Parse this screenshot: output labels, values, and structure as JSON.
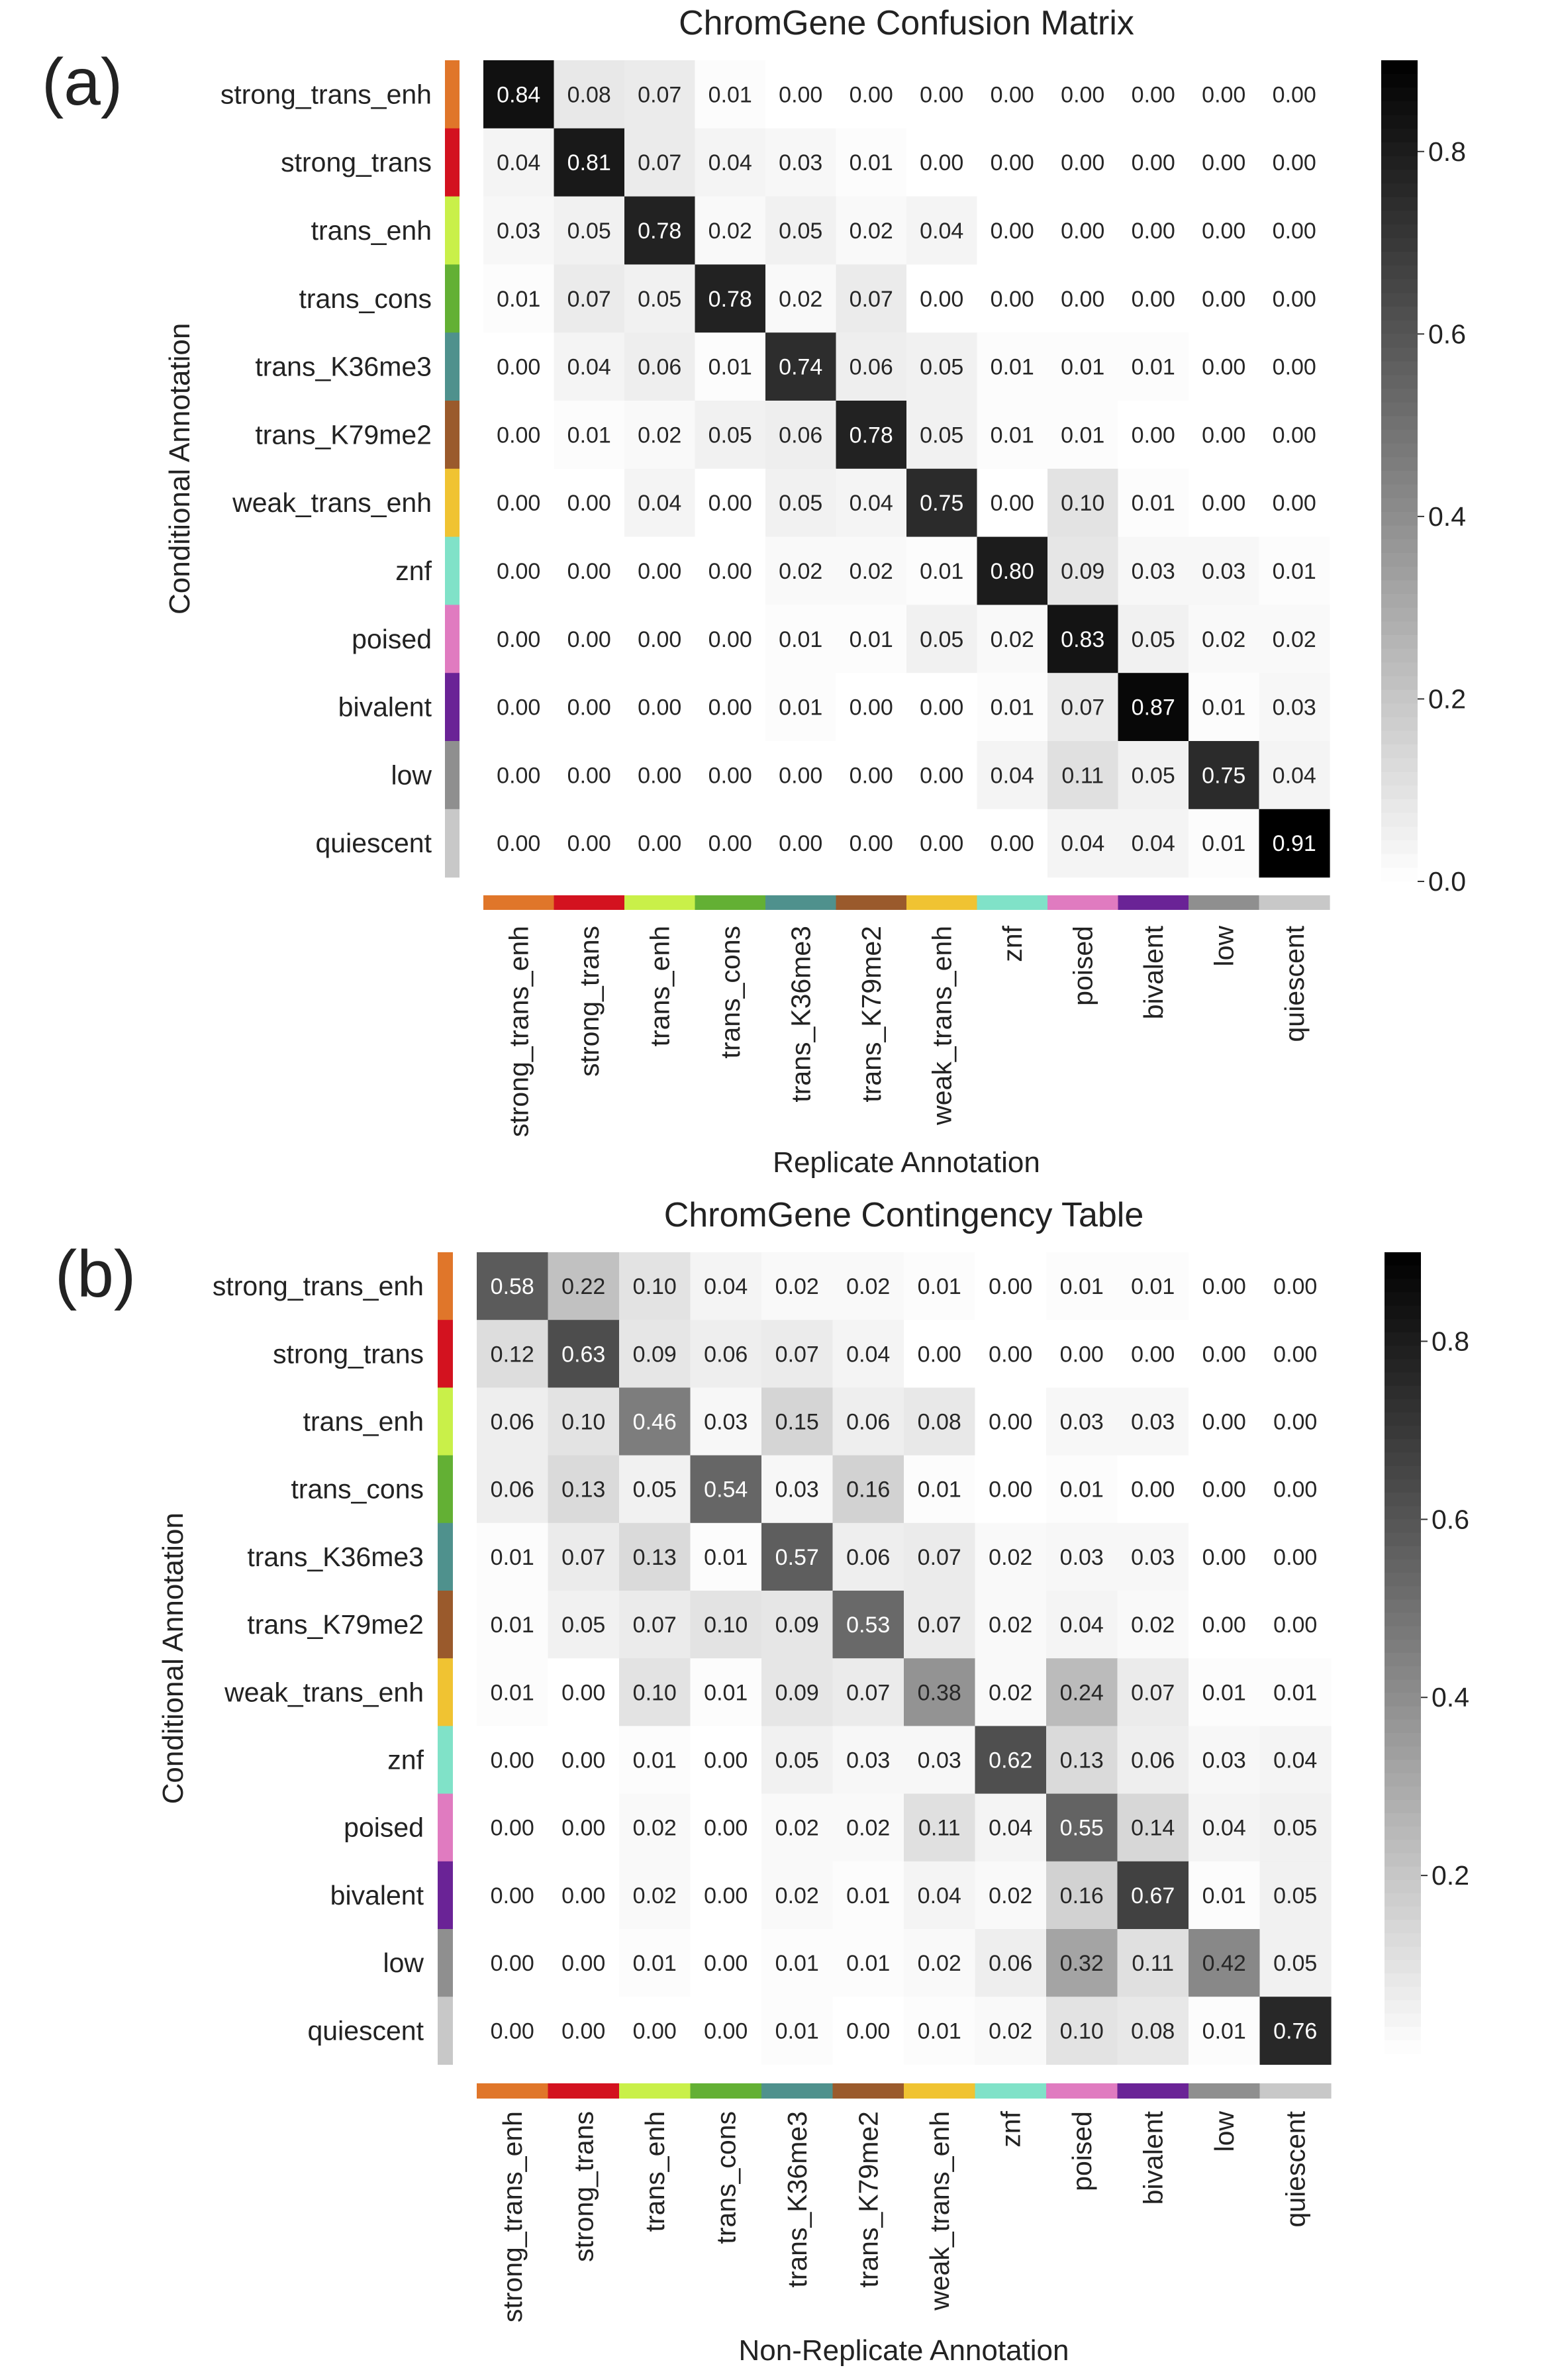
{
  "states": {
    "names": [
      "strong_trans_enh",
      "strong_trans",
      "trans_enh",
      "trans_cons",
      "trans_K36me3",
      "trans_K79me2",
      "weak_trans_enh",
      "znf",
      "poised",
      "bivalent",
      "low",
      "quiescent"
    ],
    "colors": [
      "#e0762a",
      "#d3121f",
      "#c9f049",
      "#63b034",
      "#4f918d",
      "#9a5a2c",
      "#f0c332",
      "#80e2c8",
      "#e07bc0",
      "#6a2396",
      "#8f8f8f",
      "#c8c8c8"
    ]
  },
  "chart_data": [
    {
      "type": "heatmap",
      "panel_label": "(a)",
      "title": "ChromGene Confusion Matrix",
      "xlabel": "Replicate Annotation",
      "ylabel": "Conditional Annotation",
      "colorbar_ticks": [
        "0.0",
        "0.2",
        "0.4",
        "0.6",
        "0.8"
      ],
      "colorbar_range": [
        0,
        0.9
      ],
      "values": [
        [
          0.84,
          0.08,
          0.07,
          0.01,
          0.0,
          0.0,
          0.0,
          0.0,
          0.0,
          0.0,
          0.0,
          0.0
        ],
        [
          0.04,
          0.81,
          0.07,
          0.04,
          0.03,
          0.01,
          0.0,
          0.0,
          0.0,
          0.0,
          0.0,
          0.0
        ],
        [
          0.03,
          0.05,
          0.78,
          0.02,
          0.05,
          0.02,
          0.04,
          0.0,
          0.0,
          0.0,
          0.0,
          0.0
        ],
        [
          0.01,
          0.07,
          0.05,
          0.78,
          0.02,
          0.07,
          0.0,
          0.0,
          0.0,
          0.0,
          0.0,
          0.0
        ],
        [
          0.0,
          0.04,
          0.06,
          0.01,
          0.74,
          0.06,
          0.05,
          0.01,
          0.01,
          0.01,
          0.0,
          0.0
        ],
        [
          0.0,
          0.01,
          0.02,
          0.05,
          0.06,
          0.78,
          0.05,
          0.01,
          0.01,
          0.0,
          0.0,
          0.0
        ],
        [
          0.0,
          0.0,
          0.04,
          0.0,
          0.05,
          0.04,
          0.75,
          0.0,
          0.1,
          0.01,
          0.0,
          0.0
        ],
        [
          0.0,
          0.0,
          0.0,
          0.0,
          0.02,
          0.02,
          0.01,
          0.8,
          0.09,
          0.03,
          0.03,
          0.01
        ],
        [
          0.0,
          0.0,
          0.0,
          0.0,
          0.01,
          0.01,
          0.05,
          0.02,
          0.83,
          0.05,
          0.02,
          0.02
        ],
        [
          0.0,
          0.0,
          0.0,
          0.0,
          0.01,
          0.0,
          0.0,
          0.01,
          0.07,
          0.87,
          0.01,
          0.03
        ],
        [
          0.0,
          0.0,
          0.0,
          0.0,
          0.0,
          0.0,
          0.0,
          0.04,
          0.11,
          0.05,
          0.75,
          0.04
        ],
        [
          0.0,
          0.0,
          0.0,
          0.0,
          0.0,
          0.0,
          0.0,
          0.0,
          0.04,
          0.04,
          0.01,
          0.91
        ]
      ]
    },
    {
      "type": "heatmap",
      "panel_label": "(b)",
      "title": "ChromGene Contingency Table",
      "xlabel": "Non-Replicate Annotation",
      "ylabel": "Conditional Annotation",
      "colorbar_ticks": [
        "0.2",
        "0.4",
        "0.6",
        "0.8"
      ],
      "colorbar_range": [
        0,
        0.9
      ],
      "values": [
        [
          0.58,
          0.22,
          0.1,
          0.04,
          0.02,
          0.02,
          0.01,
          0.0,
          0.01,
          0.01,
          0.0,
          0.0
        ],
        [
          0.12,
          0.63,
          0.09,
          0.06,
          0.07,
          0.04,
          0.0,
          0.0,
          0.0,
          0.0,
          0.0,
          0.0
        ],
        [
          0.06,
          0.1,
          0.46,
          0.03,
          0.15,
          0.06,
          0.08,
          0.0,
          0.03,
          0.03,
          0.0,
          0.0
        ],
        [
          0.06,
          0.13,
          0.05,
          0.54,
          0.03,
          0.16,
          0.01,
          0.0,
          0.01,
          0.0,
          0.0,
          0.0
        ],
        [
          0.01,
          0.07,
          0.13,
          0.01,
          0.57,
          0.06,
          0.07,
          0.02,
          0.03,
          0.03,
          0.0,
          0.0
        ],
        [
          0.01,
          0.05,
          0.07,
          0.1,
          0.09,
          0.53,
          0.07,
          0.02,
          0.04,
          0.02,
          0.0,
          0.0
        ],
        [
          0.01,
          0.0,
          0.1,
          0.01,
          0.09,
          0.07,
          0.38,
          0.02,
          0.24,
          0.07,
          0.01,
          0.01
        ],
        [
          0.0,
          0.0,
          0.01,
          0.0,
          0.05,
          0.03,
          0.03,
          0.62,
          0.13,
          0.06,
          0.03,
          0.04
        ],
        [
          0.0,
          0.0,
          0.02,
          0.0,
          0.02,
          0.02,
          0.11,
          0.04,
          0.55,
          0.14,
          0.04,
          0.05
        ],
        [
          0.0,
          0.0,
          0.02,
          0.0,
          0.02,
          0.01,
          0.04,
          0.02,
          0.16,
          0.67,
          0.01,
          0.05
        ],
        [
          0.0,
          0.0,
          0.01,
          0.0,
          0.01,
          0.01,
          0.02,
          0.06,
          0.32,
          0.11,
          0.42,
          0.05
        ],
        [
          0.0,
          0.0,
          0.0,
          0.0,
          0.01,
          0.0,
          0.01,
          0.02,
          0.1,
          0.08,
          0.01,
          0.76
        ]
      ]
    }
  ]
}
